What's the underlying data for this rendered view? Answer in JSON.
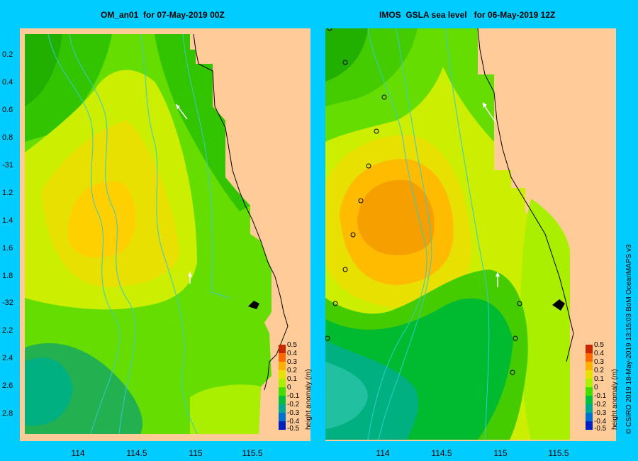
{
  "panels": [
    {
      "title": "OM_an01  for 07-May-2019 00Z"
    },
    {
      "title": "IMOS  GSLA sea level   for 06-May-2019 12Z"
    }
  ],
  "latitude_labels": [
    "0.2",
    "0.4",
    "0.6",
    "0.8",
    "-31",
    "1.2",
    "1.4",
    "1.6",
    "1.8",
    "-32",
    "2.2",
    "2.4",
    "2.6",
    "2.8"
  ],
  "longitude_labels_left": [
    "114",
    "114.5",
    "115",
    "115.5"
  ],
  "longitude_labels_right": [
    "114",
    "114.5",
    "115",
    "115.5"
  ],
  "colorbar": {
    "title": "height anomaly (m)",
    "ticks": [
      "0.5",
      "0.4",
      "0.3",
      "0.2",
      "0.1",
      "0",
      "-0.1",
      "-0.2",
      "-0.3",
      "-0.4",
      "-0.5"
    ],
    "colors": [
      "#c82800",
      "#ff6a00",
      "#ffb000",
      "#e8e000",
      "#aaf000",
      "#44dd00",
      "#00c040",
      "#00a890",
      "#0070d0",
      "#0020c0"
    ]
  },
  "copyright": "© CSIRO 2019   18-May-2019 13:15:03 BoM OceanMAPS v3",
  "colors": {
    "background": "#00ccff",
    "land": "#ffcc99",
    "coastline": "#000000",
    "bathymetry": "#33cccc"
  }
}
